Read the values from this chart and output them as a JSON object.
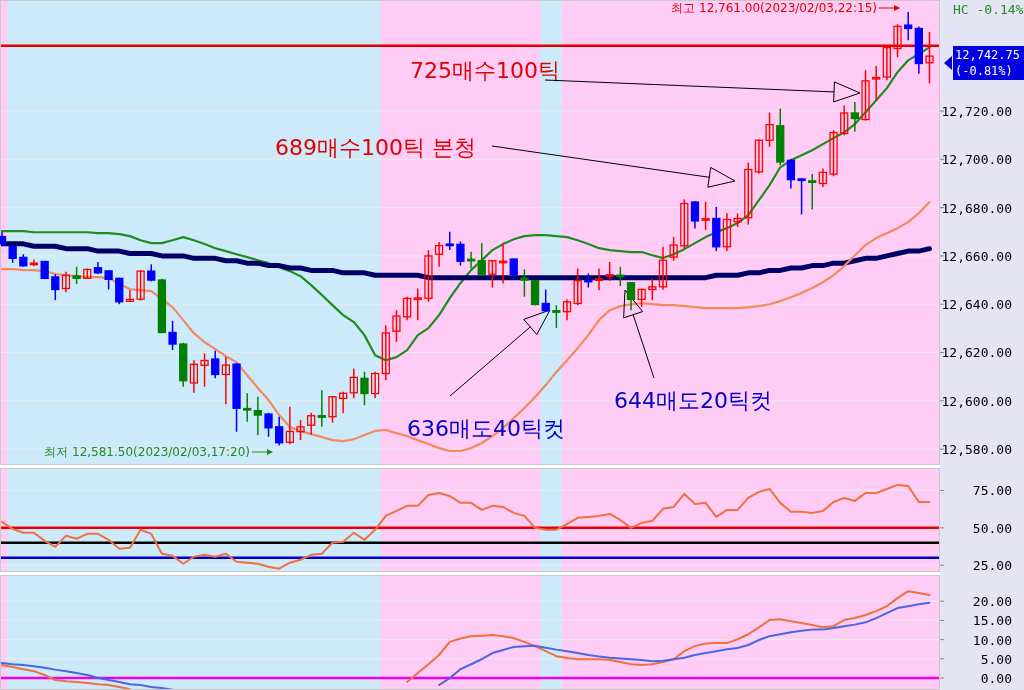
{
  "chart_data": [
    {
      "type": "candlestick",
      "categories": [
        null,
        null,
        null,
        null,
        null,
        null,
        null,
        null,
        null,
        null,
        null,
        null,
        null,
        null,
        null,
        null,
        null,
        null,
        null,
        null,
        null,
        null,
        null,
        null,
        null,
        null,
        null,
        null,
        null,
        null,
        null,
        null,
        null,
        null,
        null,
        null,
        null,
        null,
        null,
        null,
        null,
        null,
        null,
        null,
        null,
        null,
        null,
        null,
        null,
        null,
        null,
        null,
        null,
        null,
        null,
        null,
        null,
        null,
        null,
        null,
        null,
        null,
        null,
        null,
        null,
        null,
        null,
        null,
        null,
        null,
        null,
        null,
        null,
        null,
        null,
        null,
        null,
        null,
        null,
        null,
        null,
        null,
        null,
        null,
        null,
        null,
        null,
        null
      ],
      "ohlc": [
        [
          12668,
          12670,
          12664,
          12665
        ],
        [
          12663.8,
          12664.5,
          12657.1,
          12659.0
        ],
        [
          12659.4,
          12660.7,
          12655.5,
          12655.9
        ],
        [
          12657.0,
          12658.5,
          12655.8,
          12657.0
        ],
        [
          12657.7,
          12657.8,
          12650.4,
          12650.7
        ],
        [
          12651.3,
          12652.4,
          12641.7,
          12646.1
        ],
        [
          12646.5,
          12653.4,
          12645.0,
          12652.0
        ],
        [
          12651.7,
          12655.5,
          12648.3,
          12650.7
        ],
        [
          12650.7,
          12654.8,
          12650.5,
          12654.4
        ],
        [
          12655.1,
          12657.5,
          12652.5,
          12653.0
        ],
        [
          12653.8,
          12654.1,
          12646.1,
          12650.3
        ],
        [
          12650.7,
          12651.0,
          12640.0,
          12641.0
        ],
        [
          12641.2,
          12645.8,
          12641.0,
          12642.0
        ],
        [
          12642.1,
          12654.0,
          12641.5,
          12653.7
        ],
        [
          12653.7,
          12656.5,
          12649.5,
          12650.0
        ],
        [
          12650.0,
          12650.5,
          12628.0,
          12628.3
        ],
        [
          12628.3,
          12633.1,
          12621.0,
          12623.5
        ],
        [
          12623.5,
          12624.0,
          12605.8,
          12608.3
        ],
        [
          12607.4,
          12616.8,
          12603.3,
          12615.1
        ],
        [
          12614.7,
          12619.6,
          12605.8,
          12616.7
        ],
        [
          12617.3,
          12620.7,
          12609.3,
          12610.9
        ],
        [
          12610.9,
          12618.2,
          12598.6,
          12614.8
        ],
        [
          12615.2,
          12615.5,
          12587.2,
          12596.9
        ],
        [
          12596.8,
          12603.1,
          12591.3,
          12596.2
        ],
        [
          12595.9,
          12601.7,
          12585.8,
          12594.1
        ],
        [
          12594.5,
          12595.0,
          12585.1,
          12588.8
        ],
        [
          12589.2,
          12593.4,
          12581.5,
          12582.6
        ],
        [
          12582.8,
          12597.5,
          12582.0,
          12587.3
        ],
        [
          12587.2,
          12592.0,
          12583.7,
          12589.2
        ],
        [
          12589.9,
          12595.0,
          12586.0,
          12593.8
        ],
        [
          12593.8,
          12604.4,
          12589.2,
          12593.5
        ],
        [
          12593.4,
          12602.0,
          12590.9,
          12601.7
        ],
        [
          12601.0,
          12603.7,
          12594.8,
          12603.1
        ],
        [
          12603.3,
          12613.4,
          12601.0,
          12609.7
        ],
        [
          12609.3,
          12612.0,
          12598.2,
          12603.0
        ],
        [
          12603.0,
          12612.0,
          12601.0,
          12611.3
        ],
        [
          12611.3,
          12631.3,
          12608.5,
          12628.1
        ],
        [
          12628.8,
          12637.5,
          12624.4,
          12635.1
        ],
        [
          12634.8,
          12643.1,
          12633.4,
          12642.4
        ],
        [
          12642.2,
          12646.5,
          12633.4,
          12642.6
        ],
        [
          12642.4,
          12662.4,
          12641.0,
          12660.0
        ],
        [
          12660.7,
          12665.8,
          12655.5,
          12664.3
        ],
        [
          12664.9,
          12670.0,
          12662.4,
          12664.5
        ],
        [
          12664.8,
          12666.0,
          12656.0,
          12657.8
        ],
        [
          12658.6,
          12661.7,
          12654.8,
          12658.4
        ],
        [
          12658.0,
          12665.4,
          12652.0,
          12652.4
        ],
        [
          12652.4,
          12658.3,
          12646.9,
          12658.0
        ],
        [
          12657.4,
          12665.2,
          12648.6,
          12657.8
        ],
        [
          12658.7,
          12659.0,
          12650.0,
          12652.3
        ],
        [
          12650.8,
          12654.4,
          12643.1,
          12650.0
        ],
        [
          12649.7,
          12650.0,
          12639.5,
          12639.9
        ],
        [
          12640.3,
          12646.1,
          12636.8,
          12637.3
        ],
        [
          12637.3,
          12639.6,
          12630.2,
          12637.0
        ],
        [
          12636.9,
          12642.0,
          12633.4,
          12641.0
        ],
        [
          12640.3,
          12654.8,
          12639.6,
          12649.7
        ],
        [
          12649.9,
          12652.7,
          12646.9,
          12649.5
        ],
        [
          12650.0,
          12654.8,
          12645.8,
          12650.5
        ],
        [
          12651.8,
          12657.5,
          12649.7,
          12652.2
        ],
        [
          12652.0,
          12655.5,
          12647.5,
          12651.6
        ],
        [
          12648.9,
          12649.0,
          12637.5,
          12642.0
        ],
        [
          12642.0,
          12646.5,
          12638.9,
          12646.1
        ],
        [
          12646.1,
          12650.7,
          12641.7,
          12647.2
        ],
        [
          12647.2,
          12663.8,
          12646.0,
          12658.2
        ],
        [
          12659.5,
          12667.8,
          12658.0,
          12664.5
        ],
        [
          12664.2,
          12683.4,
          12663.0,
          12681.7
        ],
        [
          12682.3,
          12682.7,
          12671.4,
          12674.5
        ],
        [
          12675.0,
          12682.4,
          12670.7,
          12675.4
        ],
        [
          12675.5,
          12680.3,
          12662.0,
          12663.8
        ],
        [
          12663.8,
          12677.7,
          12662.0,
          12675.1
        ],
        [
          12674.1,
          12677.6,
          12672.0,
          12675.5
        ],
        [
          12675.8,
          12698.7,
          12673.0,
          12695.8
        ],
        [
          12694.8,
          12708.2,
          12694.0,
          12707.9
        ],
        [
          12707.9,
          12719.4,
          12705.2,
          12714.4
        ],
        [
          12713.9,
          12721.1,
          12697.6,
          12698.9
        ],
        [
          12699.6,
          12700.0,
          12687.9,
          12691.6
        ],
        [
          12691.9,
          12692.0,
          12677.2,
          12691.5
        ],
        [
          12691.1,
          12693.9,
          12679.2,
          12690.7
        ],
        [
          12690.0,
          12696.2,
          12688.5,
          12694.6
        ],
        [
          12693.9,
          12712.1,
          12693.0,
          12711.1
        ],
        [
          12710.7,
          12722.3,
          12710.0,
          12719.2
        ],
        [
          12719.2,
          12723.8,
          12711.4,
          12716.9
        ],
        [
          12716.5,
          12736.9,
          12716.0,
          12732.5
        ],
        [
          12733.5,
          12738.7,
          12724.5,
          12733.9
        ],
        [
          12734.1,
          12746.6,
          12732.8,
          12746.3
        ],
        [
          12745.9,
          12756.0,
          12742.3,
          12755.1
        ],
        [
          12755.6,
          12761.0,
          12749.3,
          12754.2
        ],
        [
          12754.2,
          12755.0,
          12735.5,
          12739.7
        ],
        [
          12740.0,
          12752.8,
          12731.4,
          12742.75
        ]
      ],
      "colors": [
        "#0000ff",
        "#0000ff",
        "#0000ff",
        "#ff0000",
        "#0000ff",
        "#0000ff",
        "#ff0000",
        "#008000",
        "#ff0000",
        "#0000ff",
        "#0000ff",
        "#0000ff",
        "#ff0000",
        "#ff0000",
        "#0000ff",
        "#008000",
        "#0000ff",
        "#008000",
        "#ff0000",
        "#ff0000",
        "#0000ff",
        "#ff0000",
        "#0000ff",
        "#008000",
        "#008000",
        "#0000ff",
        "#0000ff",
        "#ff0000",
        "#ff0000",
        "#ff0000",
        "#008000",
        "#ff0000",
        "#ff0000",
        "#ff0000",
        "#008000",
        "#ff0000",
        "#ff0000",
        "#ff0000",
        "#ff0000",
        "#ff0000",
        "#ff0000",
        "#ff0000",
        "#0000ff",
        "#0000ff",
        "#008000",
        "#008000",
        "#ff0000",
        "#ff0000",
        "#0000ff",
        "#008000",
        "#008000",
        "#0000ff",
        "#008000",
        "#ff0000",
        "#ff0000",
        "#0000ff",
        "#ff0000",
        "#ff0000",
        "#008000",
        "#008000",
        "#ff0000",
        "#ff0000",
        "#ff0000",
        "#ff0000",
        "#ff0000",
        "#0000ff",
        "#ff0000",
        "#0000ff",
        "#ff0000",
        "#ff0000",
        "#ff0000",
        "#ff0000",
        "#ff0000",
        "#008000",
        "#0000ff",
        "#0000ff",
        "#008000",
        "#ff0000",
        "#ff0000",
        "#ff0000",
        "#008000",
        "#ff0000",
        "#ff0000",
        "#ff0000",
        "#ff0000",
        "#0000ff",
        "#0000ff",
        "#ff0000"
      ],
      "series": [
        {
          "type": "line",
          "color": "#1e8c1e",
          "values": [
            12670.3,
            12670.3,
            12670.3,
            12669.8,
            12669.8,
            12669.8,
            12669.8,
            12669.8,
            12669.8,
            12669.4,
            12669.4,
            12669.0,
            12668.2,
            12666.5,
            12665.3,
            12665.3,
            12666.5,
            12667.8,
            12666.5,
            12664.9,
            12663.2,
            12662.0,
            12660.7,
            12659.5,
            12658.2,
            12657.0,
            12655.3,
            12653.7,
            12651.6,
            12647.9,
            12643.8,
            12639.6,
            12635.5,
            12632.6,
            12627.2,
            12618.9,
            12616.8,
            12618.1,
            12621.0,
            12627.2,
            12630.1,
            12635.5,
            12642.5,
            12648.7,
            12654.1,
            12658.2,
            12662.4,
            12664.9,
            12666.9,
            12668.2,
            12668.6,
            12668.6,
            12668.2,
            12667.8,
            12666.5,
            12664.9,
            12663.2,
            12662.4,
            12662.0,
            12661.6,
            12661.6,
            12660.3,
            12659.1,
            12660.7,
            12662.8,
            12665.3,
            12667.8,
            12669.8,
            12671.5,
            12673.6,
            12676.9,
            12683.1,
            12689.3,
            12696.7,
            12699.6,
            12701.7,
            12703.8,
            12706.3,
            12708.8,
            12711.2,
            12714.6,
            12719.5,
            12724.5,
            12729.5,
            12736.1,
            12741.0,
            null,
            12746.4
          ]
        },
        {
          "type": "line",
          "color": "#000066",
          "values": [
            12665,
            12665,
            12665,
            12664,
            12664,
            12664,
            12663,
            12663,
            12663,
            12662,
            12662,
            12662,
            12661,
            12661,
            12661,
            12660,
            12660,
            12660,
            12659,
            12659,
            12659,
            12658,
            12658,
            12657,
            12657,
            12656,
            12656,
            12655,
            12655,
            12654,
            12654,
            12654,
            12653,
            12653,
            12653,
            12652,
            12652,
            12652,
            12652,
            12652,
            12651,
            12651,
            12651,
            12651,
            12651,
            12651,
            12651,
            12651,
            12651,
            12651,
            12651,
            12651,
            12651,
            12651,
            12651,
            12651,
            12651,
            12651,
            12651,
            12651,
            12651,
            12651,
            12651,
            12651,
            12651,
            12651,
            12651,
            12652,
            12652,
            12652,
            12653,
            12653,
            12654,
            12654,
            12655,
            12655,
            12656,
            12656,
            12657,
            12657,
            12658,
            12659,
            12659,
            12660,
            12661,
            12662,
            12662,
            12663
          ]
        },
        {
          "type": "line",
          "color": "#f4895f",
          "values": [
            12654.5,
            12654.5,
            12654.1,
            12654.1,
            12653.7,
            12652.5,
            12652.0,
            12651.6,
            12651.2,
            12651.2,
            12650.8,
            null,
            12646.2,
            12645.8,
            12645.4,
            null,
            12638.8,
            12633.4,
            12628.0,
            12624.3,
            12621.4,
            12618.5,
            12616.0,
            12610.6,
            12605.3,
            12600.3,
            12594.1,
            12589.1,
            12587.5,
            12586.2,
            12585.0,
            12583.7,
            12583.3,
            12584.1,
            12585.8,
            12587.5,
            12587.9,
            12586.6,
            12585.4,
            12583.7,
            12582.1,
            12580.4,
            12579.2,
            12579.2,
            12580.4,
            12582.5,
            12585.4,
            12588.7,
            12592.8,
            12597.0,
            12601.5,
            12606.5,
            12611.9,
            12616.8,
            12621.8,
            12627.2,
            12633.4,
            12637.5,
            12639.2,
            12640.0,
            12640.4,
            12640.0,
            12639.6,
            12639.6,
            12639.2,
            12638.8,
            12638.4,
            12638.4,
            12638.4,
            12638.4,
            12638.8,
            12639.2,
            12640.0,
            12641.3,
            12642.9,
            12644.6,
            12646.7,
            12649.1,
            12652.0,
            12655.8,
            12660.3,
            12664.5,
            12667.4,
            12669.4,
            12671.5,
            12674.0,
            12677.7,
            12682.3
          ]
        }
      ],
      "ylim": [
        12573.4,
        12766
      ],
      "yticks": [
        {
          "value": 12580,
          "label": "12,580.00"
        },
        {
          "value": 12600,
          "label": "12,600.00"
        },
        {
          "value": 12620,
          "label": "12,620.00"
        },
        {
          "value": 12640,
          "label": "12,640.00"
        },
        {
          "value": 12660,
          "label": "12,660.00"
        },
        {
          "value": 12680,
          "label": "12,680.00"
        },
        {
          "value": 12700,
          "label": "12,700.00"
        },
        {
          "value": 12720,
          "label": "12,720.00"
        }
      ],
      "grid": "y",
      "ref_lines": [
        {
          "axis": "y",
          "value": 12747,
          "color": "#e60000"
        }
      ],
      "annotations": [
        "725매수100틱",
        "689매수100틱 본청",
        "636매도40틱컷",
        "644매도20틱컷",
        "최저 12,581.50(2023/02/03,17:20)",
        "최고 12,761.00(2023/02/03,22:15)",
        "12,742.75\n(-0.81%)",
        "HC -0.14%"
      ]
    },
    {
      "type": "line",
      "categories": [
        null,
        null,
        null,
        null,
        null,
        null,
        null,
        null,
        null,
        null,
        null,
        null,
        null,
        null,
        null,
        null,
        null,
        null,
        null,
        null,
        null,
        null,
        null,
        null,
        null,
        null,
        null,
        null,
        null,
        null,
        null,
        null,
        null,
        null,
        null,
        null,
        null,
        null,
        null,
        null,
        null,
        null,
        null,
        null,
        null,
        null,
        null,
        null,
        null,
        null,
        null,
        null,
        null,
        null,
        null,
        null,
        null,
        null,
        null,
        null,
        null,
        null,
        null,
        null,
        null,
        null,
        null,
        null,
        null,
        null,
        null,
        null,
        null,
        null,
        null,
        null,
        null,
        null,
        null,
        null,
        null,
        null,
        null,
        null,
        null,
        null,
        null,
        null
      ],
      "series": [
        {
          "color": "#f07040",
          "values": [
            54.0,
            49.3,
            46.7,
            46.7,
            41.3,
            37.3,
            44.7,
            42.7,
            46.0,
            46.0,
            42.0,
            36.0,
            36.7,
            48.7,
            46.0,
            32.7,
            31.3,
            26.0,
            30.7,
            32.0,
            30.7,
            32.7,
            27.3,
            26.7,
            26.0,
            24.0,
            22.7,
            26.7,
            28.7,
            32.0,
            32.7,
            40.0,
            40.7,
            46.7,
            42.0,
            48.7,
            58.0,
            61.3,
            64.7,
            64.7,
            72.0,
            73.3,
            71.3,
            66.7,
            66.7,
            62.0,
            64.7,
            64.0,
            60.0,
            58.0,
            50.0,
            48.7,
            48.7,
            52.7,
            56.7,
            57.3,
            58.0,
            59.3,
            55.3,
            50.0,
            53.3,
            54.7,
            62.7,
            64.0,
            72.7,
            66.0,
            66.7,
            57.3,
            62.0,
            62.0,
            70.0,
            74.0,
            76.0,
            66.7,
            60.7,
            60.7,
            60.0,
            61.3,
            67.3,
            70.0,
            68.0,
            73.3,
            73.3,
            76.0,
            78.7,
            78.0,
            67.3,
            67.3
          ]
        }
      ],
      "ylim": [
        20.5,
        90
      ],
      "yticks": [
        {
          "value": 25,
          "label": "25.00"
        },
        {
          "value": 50,
          "label": "50.00"
        },
        {
          "value": 75,
          "label": "75.00"
        }
      ],
      "grid": "y",
      "ref_lines": [
        {
          "axis": "y",
          "value": 50,
          "color": "#e60000"
        },
        {
          "axis": "y",
          "value": 40,
          "color": "#000000"
        },
        {
          "axis": "y",
          "value": 30,
          "color": "#0000cc"
        }
      ]
    },
    {
      "type": "line",
      "categories": [
        null,
        null,
        null,
        null,
        null,
        null,
        null,
        null,
        null,
        null,
        null,
        null,
        null,
        null,
        null,
        null,
        null,
        null,
        null,
        null,
        null,
        null,
        null,
        null,
        null,
        null,
        null,
        null,
        null,
        null,
        null,
        null,
        null,
        null,
        null,
        null,
        null,
        null,
        null,
        null,
        null,
        null,
        null,
        null,
        null,
        null,
        null,
        null,
        null,
        null,
        null,
        null,
        null,
        null,
        null,
        null,
        null,
        null,
        null,
        null,
        null,
        null,
        null,
        null,
        null,
        null,
        null,
        null,
        null,
        null,
        null,
        null,
        null,
        null,
        null,
        null,
        null,
        null,
        null,
        null,
        null,
        null,
        null,
        null,
        null,
        null,
        null,
        null
      ],
      "series": [
        {
          "color": "#f07040",
          "values": [
            3.4,
            2.9,
            2.3,
            1.8,
            0.8,
            -0.5,
            -0.8,
            -1.0,
            -1.3,
            -1.6,
            -1.8,
            -2.3,
            -2.9,
            null,
            null,
            null,
            null,
            null,
            null,
            null,
            null,
            null,
            null,
            null,
            null,
            null,
            null,
            null,
            null,
            null,
            null,
            null,
            null,
            null,
            null,
            null,
            null,
            null,
            -1.0,
            1.3,
            3.6,
            6.0,
            9.4,
            10.3,
            10.9,
            11.0,
            11.2,
            10.9,
            10.4,
            9.4,
            8.3,
            7.0,
            5.7,
            5.2,
            4.9,
            4.9,
            4.9,
            4.7,
            4.2,
            3.6,
            3.4,
            3.6,
            4.2,
            4.9,
            7.0,
            8.3,
            9.0,
            9.1,
            9.1,
            10.1,
            11.4,
            13.2,
            15.1,
            15.3,
            14.8,
            14.3,
            13.8,
            13.2,
            13.5,
            15.1,
            15.6,
            16.4,
            17.4,
            18.7,
            20.8,
            22.6,
            22.1,
            21.6
          ]
        },
        {
          "color": "#4a66e0",
          "values": [
            3.9,
            3.6,
            3.4,
            3.1,
            2.7,
            2.2,
            1.8,
            1.3,
            0.8,
            0.0,
            -0.5,
            -1.0,
            -1.6,
            -1.8,
            -2.3,
            -2.6,
            -3.0,
            null,
            null,
            null,
            null,
            null,
            null,
            null,
            null,
            null,
            null,
            null,
            null,
            null,
            null,
            null,
            null,
            null,
            null,
            null,
            null,
            null,
            null,
            null,
            null,
            -1.8,
            0.0,
            2.3,
            3.6,
            4.9,
            6.5,
            7.3,
            8.1,
            8.3,
            8.4,
            7.9,
            7.4,
            7.0,
            6.5,
            6.0,
            5.6,
            5.3,
            5.1,
            4.9,
            4.7,
            4.4,
            4.5,
            4.9,
            5.3,
            6.0,
            6.5,
            7.0,
            7.5,
            7.8,
            8.6,
            9.9,
            10.9,
            11.4,
            11.9,
            12.3,
            12.6,
            12.6,
            13.0,
            13.5,
            13.9,
            14.5,
            15.6,
            16.9,
            18.2,
            18.7,
            19.2,
            19.6
          ]
        }
      ],
      "ylim": [
        -3.1,
        26.8
      ],
      "yticks": [
        {
          "value": 0,
          "label": "0.00"
        },
        {
          "value": 5,
          "label": "5.00"
        },
        {
          "value": 10,
          "label": "10.00"
        },
        {
          "value": 15,
          "label": "15.00"
        },
        {
          "value": 20,
          "label": "20.00"
        }
      ],
      "grid": "y",
      "ref_lines": [
        {
          "axis": "y",
          "value": 0,
          "color": "#ee00ee"
        }
      ]
    }
  ]
}
